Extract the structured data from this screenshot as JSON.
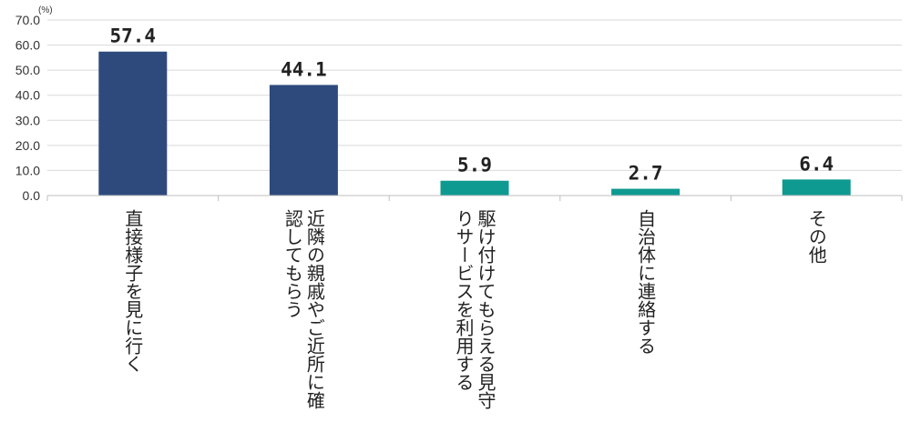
{
  "chart_data": {
    "type": "bar",
    "unit": "(%)",
    "categories": [
      "直接様子を見に行く",
      "近隣の親戚やご近所に確認してもらう",
      "駆け付けてもらえる見守りサービスを利用する",
      "自治体に連絡する",
      "その他"
    ],
    "category_lines": [
      [
        "直接様子を見に行く"
      ],
      [
        "近隣の親戚やご近所に確",
        "認してもらう"
      ],
      [
        "駆け付けてもらえる見守",
        "りサービスを利用する"
      ],
      [
        "自治体に連絡する"
      ],
      [
        "その他"
      ]
    ],
    "values": [
      57.4,
      44.1,
      5.9,
      2.7,
      6.4
    ],
    "value_labels": [
      "57.4",
      "44.1",
      "5.9",
      "2.7",
      "6.4"
    ],
    "bar_colors": [
      "#2e4a7d",
      "#2e4a7d",
      "#0e9a91",
      "#0e9a91",
      "#0e9a91"
    ],
    "ylim": [
      0,
      70
    ],
    "yticks": [
      "0.0",
      "10.0",
      "20.0",
      "30.0",
      "40.0",
      "50.0",
      "60.0",
      "70.0"
    ],
    "grid": true,
    "title": "",
    "xlabel": "",
    "ylabel": ""
  }
}
